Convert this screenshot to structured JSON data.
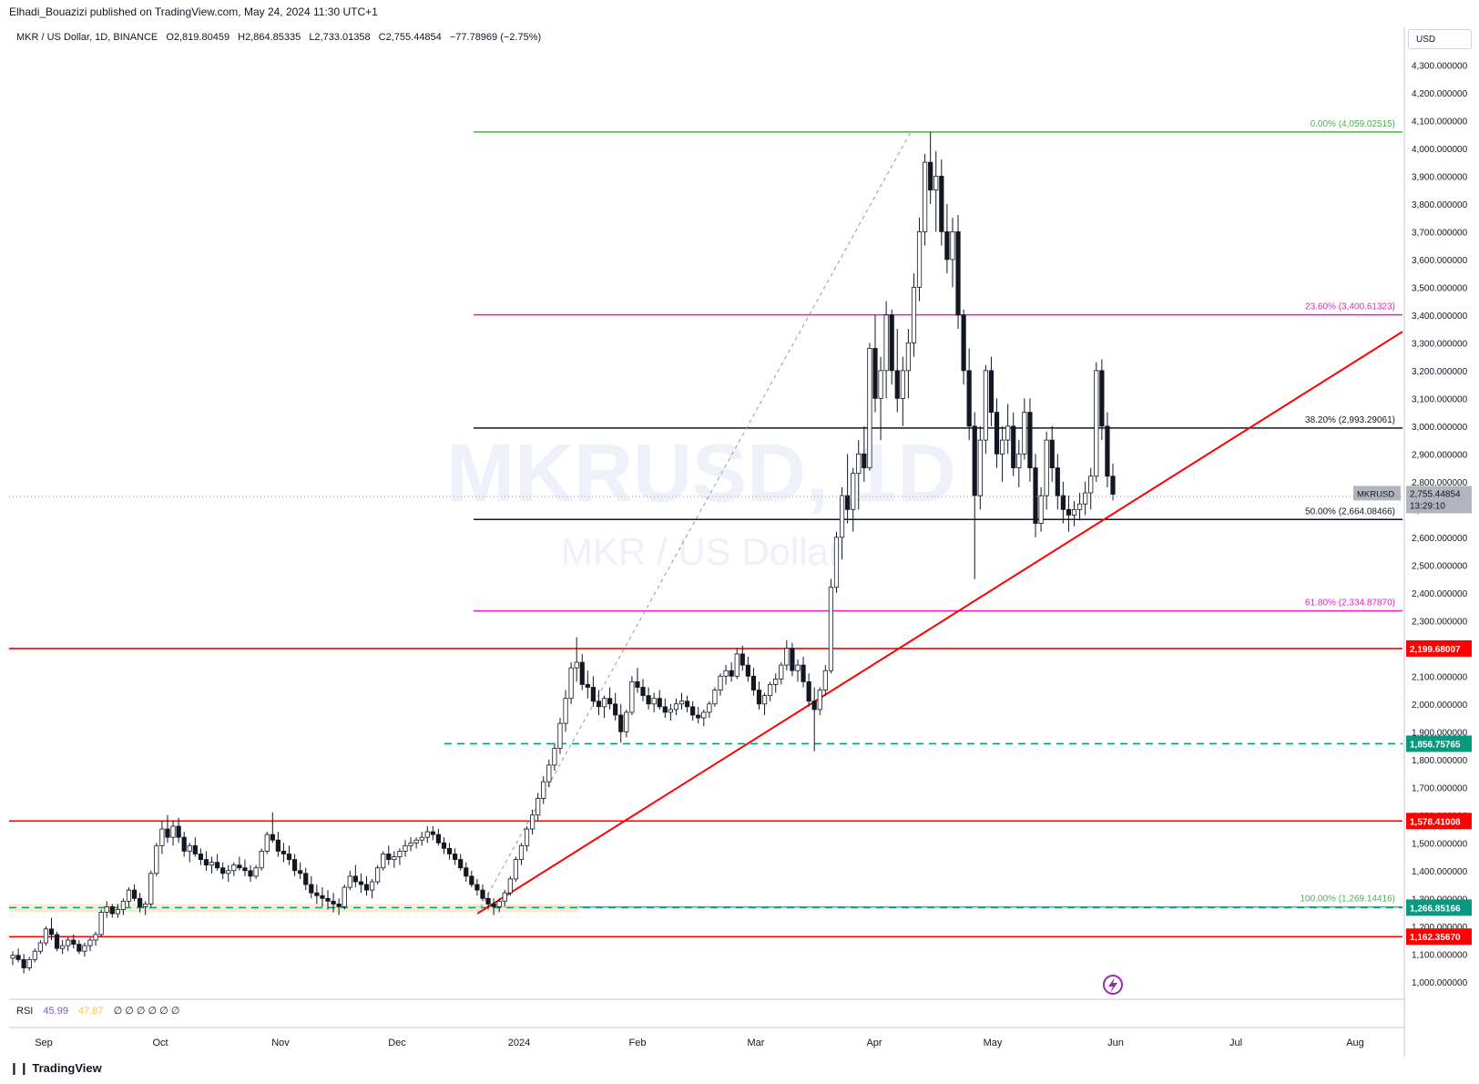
{
  "header": {
    "publisher": "Elhadi_Bouazizi published on TradingView.com, May 24, 2024 11:30 UTC+1",
    "symbol": "MKR / US Dollar, 1D, BINANCE",
    "open": "O2,819.80459",
    "high": "H2,864.85335",
    "low": "L2,733.01358",
    "close": "C2,755.44854",
    "change": "−77.78969 (−2.75%)",
    "currency": "USD"
  },
  "watermark": {
    "line1": "MKRUSD, 1D",
    "line2": "MKR / US Dollar"
  },
  "colors": {
    "up": "#131722",
    "down": "#131722",
    "red": "#ff0000",
    "green_dashed": "#089981",
    "magenta": "#e91ec9",
    "fib_green": "#4caf50",
    "fib_black": "#131722"
  },
  "icons": {
    "flash": "lightning-icon",
    "logo": "tradingview-logo-icon"
  },
  "chart_data": {
    "type": "candlestick",
    "title": "MKR / US Dollar, 1D, BINANCE",
    "x_axis": {
      "ticks": [
        "Sep",
        "Oct",
        "Nov",
        "Dec",
        "2024",
        "Feb",
        "Mar",
        "Apr",
        "May",
        "Jun",
        "Jul",
        "Aug"
      ]
    },
    "y_axis": {
      "range": [
        950,
        4380
      ],
      "ticks": [
        "1,000.000000",
        "1,100.000000",
        "1,200.000000",
        "1,300.000000",
        "1,400.000000",
        "1,500.000000",
        "1,600.000000",
        "1,700.000000",
        "1,800.000000",
        "1,900.000000",
        "2,000.000000",
        "2,100.000000",
        "2,200.000000",
        "2,300.000000",
        "2,400.000000",
        "2,500.000000",
        "2,600.000000",
        "2,700.000000",
        "2,800.000000",
        "2,900.000000",
        "3,000.000000",
        "3,100.000000",
        "3,200.000000",
        "3,300.000000",
        "3,400.000000",
        "3,500.000000",
        "3,600.000000",
        "3,700.000000",
        "3,800.000000",
        "3,900.000000",
        "4,000.000000",
        "4,100.000000",
        "4,200.000000",
        "4,300.000000"
      ]
    },
    "last_price": {
      "symbol": "MKRUSD",
      "price": "2,755.44854",
      "countdown": "13:29:10",
      "value": 2755.44854
    },
    "fib_levels": [
      {
        "label": "0.00% (4,059.02515)",
        "value": 4059.02515,
        "color": "#4caf50"
      },
      {
        "label": "23.60% (3,400.61323)",
        "value": 3400.61323,
        "color": "#e91ec9"
      },
      {
        "label": "38.20% (2,993.29061)",
        "value": 2993.29061,
        "color": "#131722"
      },
      {
        "label": "50.00% (2,664.08466)",
        "value": 2664.08466,
        "color": "#131722"
      },
      {
        "label": "61.80% (2,334.87870)",
        "value": 2334.8787,
        "color": "#e91ec9"
      },
      {
        "label": "100.00% (1,269.14416)",
        "value": 1269.14416,
        "color": "#4caf50"
      }
    ],
    "horizontal_levels": [
      {
        "label": "2,199.68007",
        "value": 2199.68007,
        "color": "#ff0000",
        "style": "solid"
      },
      {
        "label": "1,856.75765",
        "value": 1856.75765,
        "color": "#089981",
        "style": "dashed"
      },
      {
        "label": "1,578.41008",
        "value": 1578.41008,
        "color": "#ff0000",
        "style": "solid"
      },
      {
        "label": "1,266.85166",
        "value": 1266.85166,
        "color": "#089981",
        "style": "dashed"
      },
      {
        "label": "1,162.35670",
        "value": 1162.3567,
        "color": "#ff0000",
        "style": "solid"
      }
    ],
    "trendline": {
      "from": [
        "Dec 19 2023",
        1245
      ],
      "to": [
        "Aug 2 2024",
        3340
      ],
      "color": "#ff0000"
    },
    "fib_anchor_line": {
      "from": [
        "Dec 19 2023",
        1245
      ],
      "to": [
        "Apr 1 2024",
        4059
      ]
    },
    "candles_ohlc": [
      [
        1085,
        1110,
        1060,
        1095
      ],
      [
        1095,
        1120,
        1070,
        1080
      ],
      [
        1080,
        1100,
        1030,
        1050
      ],
      [
        1050,
        1090,
        1040,
        1080
      ],
      [
        1080,
        1120,
        1070,
        1110
      ],
      [
        1110,
        1150,
        1100,
        1140
      ],
      [
        1140,
        1200,
        1130,
        1190
      ],
      [
        1190,
        1230,
        1150,
        1170
      ],
      [
        1170,
        1180,
        1110,
        1120
      ],
      [
        1120,
        1150,
        1100,
        1130
      ],
      [
        1130,
        1160,
        1110,
        1150
      ],
      [
        1150,
        1170,
        1120,
        1135
      ],
      [
        1135,
        1150,
        1100,
        1110
      ],
      [
        1110,
        1140,
        1090,
        1130
      ],
      [
        1130,
        1160,
        1110,
        1150
      ],
      [
        1150,
        1180,
        1130,
        1170
      ],
      [
        1170,
        1260,
        1160,
        1250
      ],
      [
        1250,
        1290,
        1230,
        1270
      ],
      [
        1270,
        1280,
        1230,
        1245
      ],
      [
        1245,
        1280,
        1230,
        1260
      ],
      [
        1260,
        1300,
        1240,
        1290
      ],
      [
        1290,
        1340,
        1270,
        1330
      ],
      [
        1330,
        1350,
        1290,
        1300
      ],
      [
        1300,
        1320,
        1250,
        1270
      ],
      [
        1270,
        1290,
        1240,
        1280
      ],
      [
        1280,
        1400,
        1270,
        1390
      ],
      [
        1390,
        1500,
        1380,
        1490
      ],
      [
        1490,
        1580,
        1460,
        1550
      ],
      [
        1550,
        1600,
        1500,
        1520
      ],
      [
        1520,
        1580,
        1490,
        1560
      ],
      [
        1560,
        1590,
        1500,
        1520
      ],
      [
        1520,
        1540,
        1450,
        1470
      ],
      [
        1470,
        1500,
        1430,
        1490
      ],
      [
        1490,
        1520,
        1450,
        1460
      ],
      [
        1460,
        1480,
        1420,
        1440
      ],
      [
        1440,
        1470,
        1400,
        1420
      ],
      [
        1420,
        1450,
        1390,
        1430
      ],
      [
        1430,
        1460,
        1400,
        1410
      ],
      [
        1410,
        1430,
        1370,
        1390
      ],
      [
        1390,
        1420,
        1360,
        1400
      ],
      [
        1400,
        1430,
        1380,
        1420
      ],
      [
        1420,
        1450,
        1400,
        1410
      ],
      [
        1410,
        1440,
        1380,
        1400
      ],
      [
        1400,
        1420,
        1360,
        1380
      ],
      [
        1380,
        1420,
        1370,
        1410
      ],
      [
        1410,
        1480,
        1400,
        1470
      ],
      [
        1470,
        1540,
        1460,
        1530
      ],
      [
        1530,
        1610,
        1500,
        1510
      ],
      [
        1510,
        1540,
        1450,
        1470
      ],
      [
        1470,
        1500,
        1430,
        1460
      ],
      [
        1460,
        1490,
        1420,
        1440
      ],
      [
        1440,
        1460,
        1380,
        1400
      ],
      [
        1400,
        1430,
        1370,
        1390
      ],
      [
        1390,
        1410,
        1330,
        1350
      ],
      [
        1350,
        1380,
        1300,
        1320
      ],
      [
        1320,
        1350,
        1280,
        1310
      ],
      [
        1310,
        1340,
        1270,
        1300
      ],
      [
        1300,
        1330,
        1260,
        1290
      ],
      [
        1290,
        1320,
        1250,
        1280
      ],
      [
        1280,
        1300,
        1240,
        1270
      ],
      [
        1270,
        1350,
        1260,
        1340
      ],
      [
        1340,
        1400,
        1330,
        1380
      ],
      [
        1380,
        1420,
        1340,
        1360
      ],
      [
        1360,
        1390,
        1320,
        1350
      ],
      [
        1350,
        1380,
        1310,
        1330
      ],
      [
        1330,
        1370,
        1300,
        1360
      ],
      [
        1360,
        1420,
        1350,
        1410
      ],
      [
        1410,
        1470,
        1400,
        1460
      ],
      [
        1460,
        1490,
        1420,
        1440
      ],
      [
        1440,
        1470,
        1410,
        1450
      ],
      [
        1450,
        1480,
        1420,
        1470
      ],
      [
        1470,
        1510,
        1450,
        1490
      ],
      [
        1490,
        1520,
        1470,
        1500
      ],
      [
        1500,
        1520,
        1480,
        1510
      ],
      [
        1510,
        1540,
        1490,
        1520
      ],
      [
        1520,
        1560,
        1500,
        1540
      ],
      [
        1540,
        1560,
        1510,
        1530
      ],
      [
        1530,
        1550,
        1490,
        1500
      ],
      [
        1500,
        1520,
        1460,
        1480
      ],
      [
        1480,
        1500,
        1440,
        1460
      ],
      [
        1460,
        1480,
        1420,
        1440
      ],
      [
        1440,
        1460,
        1400,
        1410
      ],
      [
        1410,
        1430,
        1360,
        1380
      ],
      [
        1380,
        1400,
        1340,
        1350
      ],
      [
        1350,
        1370,
        1310,
        1330
      ],
      [
        1330,
        1350,
        1290,
        1300
      ],
      [
        1300,
        1320,
        1260,
        1280
      ],
      [
        1280,
        1300,
        1240,
        1270
      ],
      [
        1270,
        1300,
        1250,
        1290
      ],
      [
        1290,
        1330,
        1270,
        1320
      ],
      [
        1320,
        1380,
        1310,
        1370
      ],
      [
        1370,
        1450,
        1360,
        1440
      ],
      [
        1440,
        1500,
        1420,
        1490
      ],
      [
        1490,
        1560,
        1470,
        1550
      ],
      [
        1550,
        1620,
        1530,
        1600
      ],
      [
        1600,
        1680,
        1580,
        1660
      ],
      [
        1660,
        1740,
        1640,
        1720
      ],
      [
        1720,
        1800,
        1700,
        1780
      ],
      [
        1780,
        1860,
        1760,
        1840
      ],
      [
        1840,
        1950,
        1820,
        1930
      ],
      [
        1930,
        2050,
        1900,
        2020
      ],
      [
        2020,
        2150,
        2000,
        2130
      ],
      [
        2130,
        2240,
        2080,
        2150
      ],
      [
        2150,
        2180,
        2050,
        2070
      ],
      [
        2070,
        2120,
        2020,
        2060
      ],
      [
        2060,
        2100,
        1990,
        2010
      ],
      [
        2010,
        2050,
        1960,
        1990
      ],
      [
        1990,
        2030,
        1950,
        2020
      ],
      [
        2020,
        2060,
        1980,
        2000
      ],
      [
        2000,
        2040,
        1940,
        1960
      ],
      [
        1960,
        2000,
        1860,
        1900
      ],
      [
        1900,
        1980,
        1880,
        1970
      ],
      [
        1970,
        2100,
        1960,
        2080
      ],
      [
        2080,
        2130,
        2040,
        2060
      ],
      [
        2060,
        2090,
        2010,
        2030
      ],
      [
        2030,
        2060,
        1980,
        2000
      ],
      [
        2000,
        2040,
        1970,
        2020
      ],
      [
        2020,
        2050,
        1980,
        1990
      ],
      [
        1990,
        2020,
        1950,
        1970
      ],
      [
        1970,
        2000,
        1940,
        1980
      ],
      [
        1980,
        2020,
        1960,
        2000
      ],
      [
        2000,
        2040,
        1980,
        2010
      ],
      [
        2010,
        2030,
        1970,
        1990
      ],
      [
        1990,
        2010,
        1940,
        1960
      ],
      [
        1960,
        1990,
        1930,
        1950
      ],
      [
        1950,
        1980,
        1920,
        1970
      ],
      [
        1970,
        2010,
        1950,
        2000
      ],
      [
        2000,
        2060,
        1990,
        2050
      ],
      [
        2050,
        2110,
        2030,
        2100
      ],
      [
        2100,
        2140,
        2070,
        2120
      ],
      [
        2120,
        2150,
        2080,
        2100
      ],
      [
        2100,
        2200,
        2090,
        2180
      ],
      [
        2180,
        2210,
        2120,
        2140
      ],
      [
        2140,
        2170,
        2080,
        2100
      ],
      [
        2100,
        2130,
        2030,
        2050
      ],
      [
        2050,
        2080,
        1980,
        2000
      ],
      [
        2000,
        2040,
        1960,
        2030
      ],
      [
        2030,
        2080,
        2010,
        2070
      ],
      [
        2070,
        2110,
        2040,
        2090
      ],
      [
        2090,
        2150,
        2070,
        2140
      ],
      [
        2140,
        2230,
        2120,
        2200
      ],
      [
        2200,
        2220,
        2100,
        2120
      ],
      [
        2120,
        2160,
        2080,
        2140
      ],
      [
        2140,
        2170,
        2060,
        2080
      ],
      [
        2080,
        2110,
        1990,
        2010
      ],
      [
        2010,
        2060,
        1830,
        1980
      ],
      [
        1980,
        2060,
        1960,
        2050
      ],
      [
        2050,
        2140,
        2030,
        2120
      ],
      [
        2120,
        2450,
        2110,
        2420
      ],
      [
        2420,
        2620,
        2400,
        2600
      ],
      [
        2600,
        2780,
        2520,
        2750
      ],
      [
        2750,
        2900,
        2650,
        2700
      ],
      [
        2700,
        2850,
        2620,
        2830
      ],
      [
        2830,
        2950,
        2700,
        2900
      ],
      [
        2900,
        3000,
        2800,
        2850
      ],
      [
        2850,
        3300,
        2840,
        3280
      ],
      [
        3280,
        3400,
        3050,
        3100
      ],
      [
        3100,
        3250,
        2950,
        3200
      ],
      [
        3200,
        3450,
        3100,
        3400
      ],
      [
        3400,
        3420,
        3150,
        3200
      ],
      [
        3200,
        3350,
        3050,
        3100
      ],
      [
        3100,
        3250,
        3000,
        3200
      ],
      [
        3200,
        3350,
        3100,
        3300
      ],
      [
        3300,
        3550,
        3250,
        3500
      ],
      [
        3500,
        3750,
        3450,
        3700
      ],
      [
        3700,
        3980,
        3650,
        3950
      ],
      [
        3950,
        4059,
        3800,
        3850
      ],
      [
        3850,
        3990,
        3700,
        3900
      ],
      [
        3900,
        3960,
        3650,
        3700
      ],
      [
        3700,
        3800,
        3550,
        3600
      ],
      [
        3600,
        3750,
        3500,
        3700
      ],
      [
        3700,
        3760,
        3350,
        3400
      ],
      [
        3400,
        3420,
        3150,
        3200
      ],
      [
        3200,
        3280,
        2950,
        3000
      ],
      [
        3000,
        3050,
        2450,
        2750
      ],
      [
        2750,
        3000,
        2700,
        2950
      ],
      [
        2950,
        3220,
        2900,
        3200
      ],
      [
        3200,
        3250,
        3000,
        3050
      ],
      [
        3050,
        3100,
        2850,
        2900
      ],
      [
        2900,
        3000,
        2800,
        2950
      ],
      [
        2950,
        3080,
        2900,
        3000
      ],
      [
        3000,
        3050,
        2820,
        2850
      ],
      [
        2850,
        2950,
        2780,
        2900
      ],
      [
        2900,
        3100,
        2880,
        3050
      ],
      [
        3050,
        3100,
        2800,
        2850
      ],
      [
        2850,
        2900,
        2600,
        2650
      ],
      [
        2650,
        2780,
        2620,
        2750
      ],
      [
        2750,
        2980,
        2700,
        2950
      ],
      [
        2950,
        3000,
        2800,
        2850
      ],
      [
        2850,
        2900,
        2700,
        2750
      ],
      [
        2750,
        2800,
        2650,
        2700
      ],
      [
        2700,
        2750,
        2620,
        2680
      ],
      [
        2680,
        2730,
        2640,
        2700
      ],
      [
        2700,
        2760,
        2660,
        2720
      ],
      [
        2720,
        2800,
        2680,
        2760
      ],
      [
        2760,
        2850,
        2700,
        2820
      ],
      [
        2820,
        3230,
        2800,
        3200
      ],
      [
        3200,
        3240,
        2950,
        3000
      ],
      [
        3000,
        3050,
        2780,
        2820
      ],
      [
        2820,
        2865,
        2733,
        2755
      ]
    ]
  }
}
